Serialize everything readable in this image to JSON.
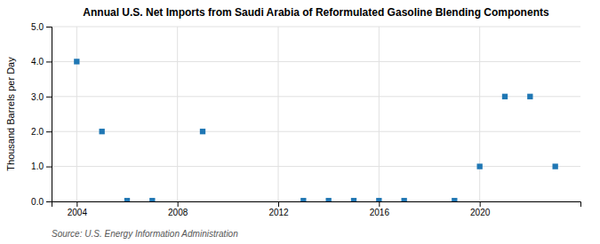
{
  "chart_data": {
    "type": "scatter",
    "title": "Annual U.S. Net Imports from Saudi Arabia of Reformulated Gasoline Blending Components",
    "ylabel": "Thousand Barrels per Day",
    "source": "Source: U.S. Energy Information Administration",
    "x": [
      2004,
      2005,
      2006,
      2007,
      2009,
      2013,
      2014,
      2015,
      2016,
      2017,
      2019,
      2020,
      2021,
      2022,
      2023
    ],
    "values": [
      4.0,
      2.0,
      0.02,
      0.02,
      2.0,
      0.02,
      0.02,
      0.02,
      0.02,
      0.02,
      0.02,
      1.0,
      3.0,
      3.0,
      1.0
    ],
    "marker": "square",
    "xlim": [
      2003.0,
      2024.0
    ],
    "ylim": [
      0.0,
      5.0
    ],
    "xticks": [
      2004,
      2008,
      2012,
      2016,
      2020
    ],
    "yticks": [
      {
        "value": 0.0,
        "label": "0.0"
      },
      {
        "value": 1.0,
        "label": "1.0"
      },
      {
        "value": 2.0,
        "label": "2.0"
      },
      {
        "value": 3.0,
        "label": "3.0"
      },
      {
        "value": 4.0,
        "label": "4.0"
      },
      {
        "value": 5.0,
        "label": "5.0"
      }
    ],
    "grid": true
  }
}
